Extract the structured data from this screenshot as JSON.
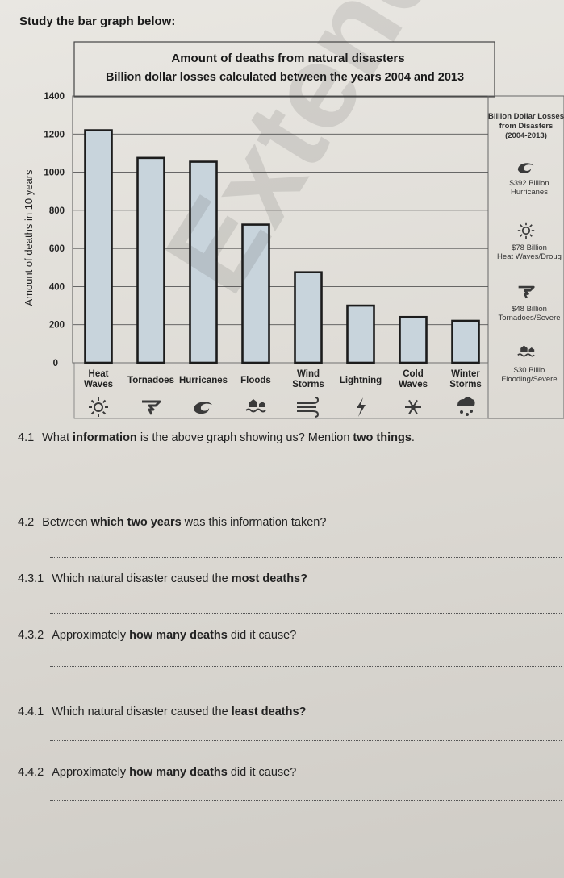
{
  "intro": "Study the bar graph below:",
  "chart_data": {
    "type": "bar",
    "title": "Amount of deaths from natural disasters",
    "subtitle": "Billion dollar losses calculated between the years 2004 and 2013",
    "xlabel": "",
    "ylabel": "Amount of deaths in 10 years",
    "ylim": [
      0,
      1400
    ],
    "yticks": [
      "0",
      "200",
      "400",
      "600",
      "800",
      "1000",
      "1200",
      "1400"
    ],
    "grid": true,
    "categories": [
      "Heat Waves",
      "Tornadoes",
      "Hurricanes",
      "Floods",
      "Wind Storms",
      "Lightning",
      "Cold Waves",
      "Winter Storms"
    ],
    "values": [
      1220,
      1075,
      1055,
      725,
      475,
      300,
      240,
      220
    ],
    "bar_color": "#c8d4dc",
    "icons": [
      "sun-icon",
      "tornado-icon",
      "hurricane-icon",
      "flood-icon",
      "wind-icon",
      "lightning-icon",
      "snowflake-icon",
      "winter-storm-icon"
    ],
    "legend": {
      "title": [
        "Billion Dollar Losses",
        "from Disasters",
        "(2004-2013)"
      ],
      "items": [
        {
          "icon": "hurricane-icon",
          "lines": [
            "$392 Billion",
            "Hurricanes"
          ]
        },
        {
          "icon": "sun-icon",
          "lines": [
            "$78 Billion",
            "Heat Waves/Droug"
          ]
        },
        {
          "icon": "tornado-icon",
          "lines": [
            "$48 Billion",
            "Tornadoes/Severe"
          ]
        },
        {
          "icon": "flood-icon",
          "lines": [
            "$30 Billio",
            "Flooding/Severe"
          ]
        }
      ]
    }
  },
  "questions": [
    {
      "num": "4.1",
      "parts": [
        {
          "t": "What "
        },
        {
          "t": "information",
          "b": true
        },
        {
          "t": " is the above graph showing us? Mention "
        },
        {
          "t": "two things",
          "b": true
        },
        {
          "t": "."
        }
      ]
    },
    {
      "num": "4.2",
      "parts": [
        {
          "t": "Between "
        },
        {
          "t": "which two years",
          "b": true
        },
        {
          "t": " was this information taken?"
        }
      ]
    },
    {
      "num": "4.3.1",
      "parts": [
        {
          "t": "Which natural disaster caused the "
        },
        {
          "t": "most deaths?",
          "b": true
        }
      ]
    },
    {
      "num": "4.3.2",
      "parts": [
        {
          "t": "Approximately "
        },
        {
          "t": "how many deaths",
          "b": true
        },
        {
          "t": " did it cause?"
        }
      ]
    },
    {
      "num": "4.4.1",
      "parts": [
        {
          "t": "Which natural disaster caused the "
        },
        {
          "t": "least deaths?",
          "b": true
        }
      ]
    },
    {
      "num": "4.4.2",
      "parts": [
        {
          "t": "Approximately "
        },
        {
          "t": "how many deaths",
          "b": true
        },
        {
          "t": " did it cause?"
        }
      ]
    }
  ],
  "watermark": "Extenda"
}
